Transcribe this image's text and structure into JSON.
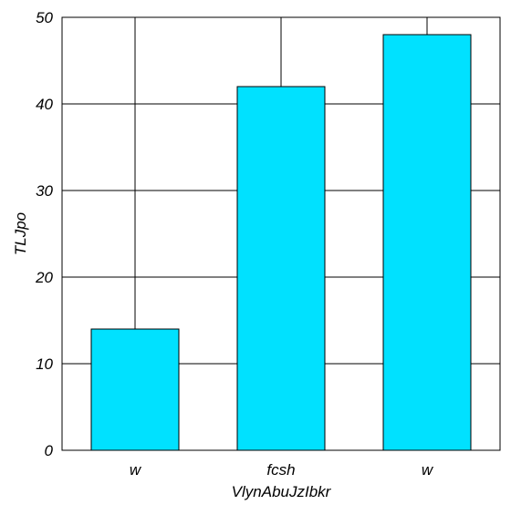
{
  "chart_data": {
    "type": "bar",
    "title": "",
    "xlabel": "VlynAbuJzIbkr",
    "ylabel": "TLJpo",
    "categories": [
      "w",
      "fcsh",
      "w"
    ],
    "values": [
      14,
      42,
      48
    ],
    "ylim": [
      0,
      50
    ],
    "yticks": [
      0,
      10,
      20,
      30,
      40,
      50
    ],
    "grid": true,
    "bar_color": "#00e1ff",
    "edge_color": "#000000",
    "grid_color": "#000000"
  }
}
